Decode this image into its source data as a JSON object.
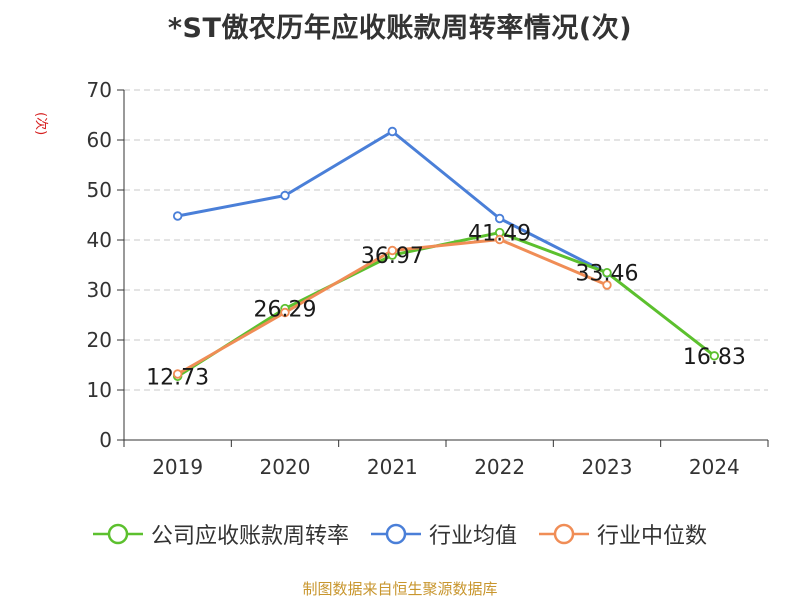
{
  "title": "*ST傲农历年应收账款周转率情况(次)",
  "unit_label": "(次)",
  "source": "制图数据来自恒生聚源数据库",
  "chart_data": {
    "type": "line",
    "title": "*ST傲农历年应收账款周转率情况(次)",
    "ylabel": "(次)",
    "xlabel": "",
    "categories": [
      "2019",
      "2020",
      "2021",
      "2022",
      "2023",
      "2024"
    ],
    "ylim": [
      0,
      70
    ],
    "yticks": [
      0,
      10,
      20,
      30,
      40,
      50,
      60,
      70
    ],
    "grid": true,
    "legend_position": "bottom",
    "series": [
      {
        "name": "公司应收账款周转率",
        "color": "#5cc02e",
        "values": [
          12.73,
          26.29,
          36.97,
          41.49,
          33.46,
          16.83
        ],
        "labels": [
          "12.73",
          "26.29",
          "36.97",
          "41.49",
          "33.46",
          "16.83"
        ]
      },
      {
        "name": "行业均值",
        "color": "#4a7fd8",
        "values": [
          44.8,
          48.9,
          61.7,
          44.3,
          33.4,
          null
        ]
      },
      {
        "name": "行业中位数",
        "color": "#f08d56",
        "values": [
          13.2,
          25.5,
          37.9,
          40.1,
          31.0,
          null
        ]
      }
    ]
  }
}
